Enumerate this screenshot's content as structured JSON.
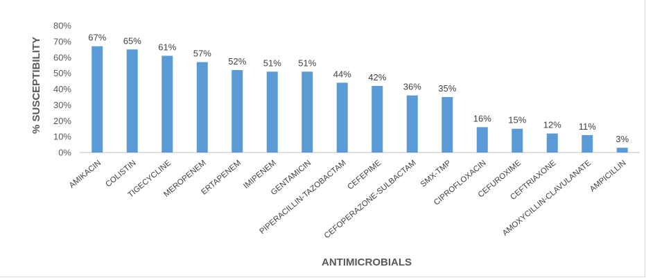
{
  "chart_data": {
    "type": "bar",
    "title": "",
    "xlabel": "ANTIMICROBIALS",
    "ylabel": "% SUSCEPTIBILITY",
    "ylim": [
      0,
      80
    ],
    "ytick_step": 10,
    "ytick_suffix": "%",
    "grid": false,
    "legend": "none",
    "bar_color": "#5b9bd5",
    "categories": [
      "AMIKACIN",
      "COLISTIN",
      "TIGECYCLINE",
      "MEROPENEM",
      "ERTAPENEM",
      "IMIPENEM",
      "GENTAMICIN",
      "PIPERACILLIN-TAZOBACTAM",
      "CEFEPIME",
      "CEFOPERAZONE-SULBACTAM",
      "SMX-TMP",
      "CIPROFLOXACIN",
      "CEFUROXIME",
      "CEFTRIAXONE",
      "AMOXYCILLIN-CLAVULANATE",
      "AMPICILLIN"
    ],
    "values": [
      67,
      65,
      61,
      57,
      52,
      51,
      51,
      44,
      42,
      36,
      35,
      16,
      15,
      12,
      11,
      3
    ],
    "data_labels": [
      "67%",
      "65%",
      "61%",
      "57%",
      "52%",
      "51%",
      "51%",
      "44%",
      "42%",
      "36%",
      "35%",
      "16%",
      "15%",
      "12%",
      "11%",
      "3%"
    ]
  }
}
